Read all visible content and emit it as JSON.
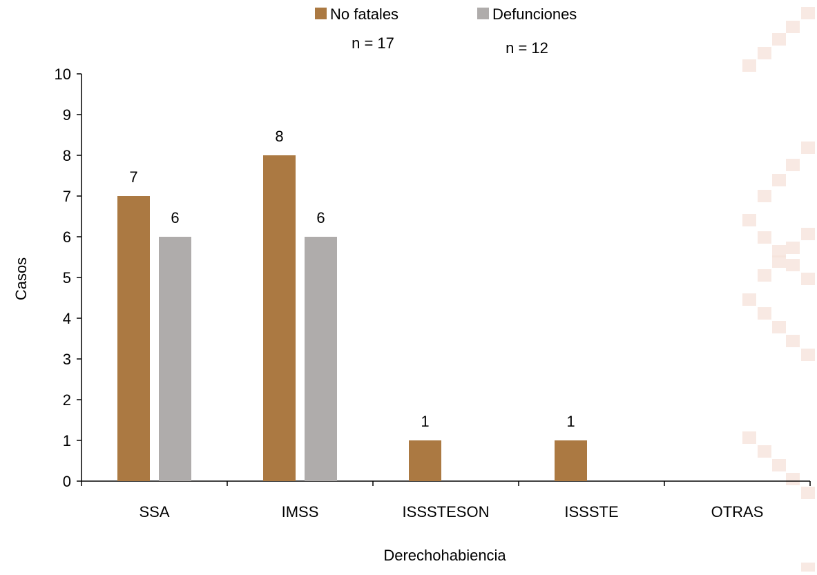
{
  "chart_data": {
    "type": "bar",
    "categories": [
      "SSA",
      "IMSS",
      "ISSSTESON",
      "ISSSTE",
      "OTRAS"
    ],
    "series": [
      {
        "name": "No fatales",
        "values": [
          7,
          8,
          1,
          1,
          0
        ],
        "color": "#AB7942"
      },
      {
        "name": "Defunciones",
        "values": [
          6,
          6,
          0,
          0,
          0
        ],
        "color": "#AFACAB"
      }
    ],
    "data_labels": [
      [
        "7",
        "8",
        "1",
        "1",
        ""
      ],
      [
        "6",
        "6",
        "",
        "",
        ""
      ]
    ],
    "legend_notes": [
      "n = 17",
      "n = 12"
    ],
    "ylabel": "Casos",
    "xlabel": "Derechohabiencia",
    "ylim": [
      0,
      10
    ],
    "yticks": [
      0,
      1,
      2,
      3,
      4,
      5,
      6,
      7,
      8,
      9,
      10
    ],
    "grid": false,
    "legend_position": "top-center",
    "background_pattern_color": "#F6E1DA"
  }
}
